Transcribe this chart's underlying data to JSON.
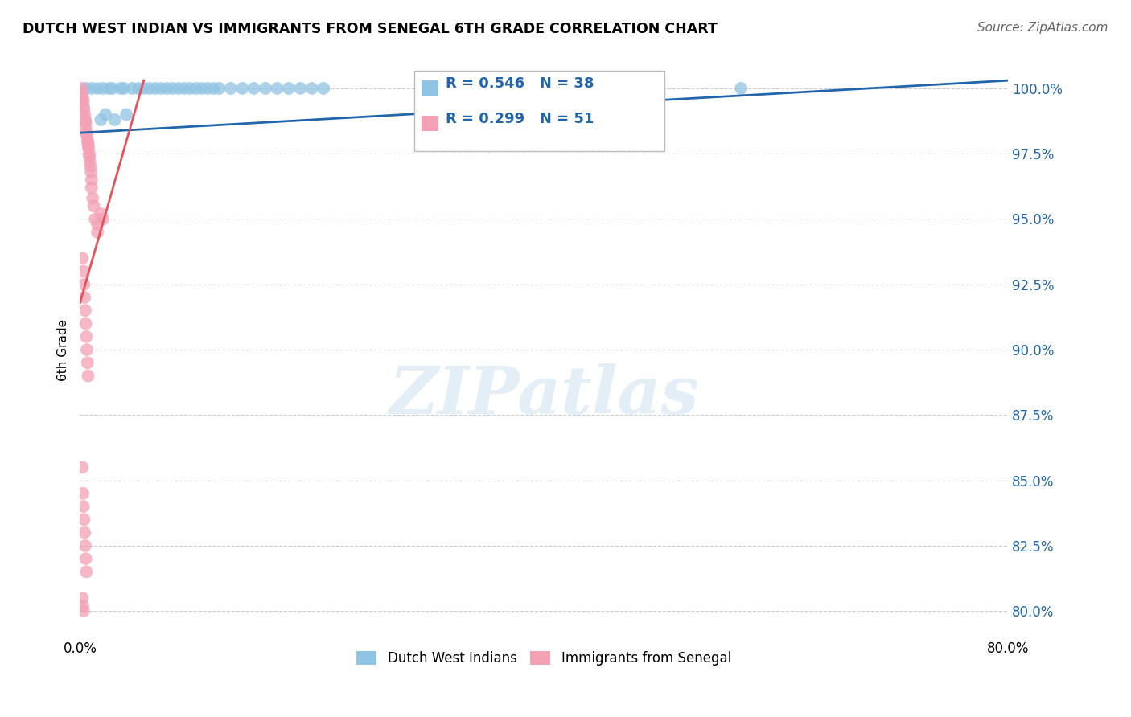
{
  "title": "DUTCH WEST INDIAN VS IMMIGRANTS FROM SENEGAL 6TH GRADE CORRELATION CHART",
  "source": "Source: ZipAtlas.com",
  "ylabel": "6th Grade",
  "xlim": [
    0.0,
    80.0
  ],
  "ylim": [
    79.0,
    101.0
  ],
  "yticks": [
    80.0,
    82.5,
    85.0,
    87.5,
    90.0,
    92.5,
    95.0,
    97.5,
    100.0
  ],
  "ytick_labels_right": [
    "80.0%",
    "82.5%",
    "85.0%",
    "87.5%",
    "90.0%",
    "92.5%",
    "95.0%",
    "97.5%",
    "100.0%"
  ],
  "xtick_positions": [
    0,
    20,
    40,
    60,
    80
  ],
  "xtick_labels": [
    "0.0%",
    "",
    "",
    "",
    "80.0%"
  ],
  "blue_R": 0.546,
  "blue_N": 38,
  "pink_R": 0.299,
  "pink_N": 51,
  "blue_color": "#90c4e4",
  "pink_color": "#f4a0b5",
  "blue_line_color": "#2166ac",
  "pink_line_color": "#e8505a",
  "legend_label_blue": "Dutch West Indians",
  "legend_label_pink": "Immigrants from Senegal",
  "watermark_text": "ZIPatlas",
  "blue_line_x": [
    0.0,
    80.0
  ],
  "blue_line_y": [
    98.3,
    100.3
  ],
  "pink_line_x": [
    0.0,
    5.5
  ],
  "pink_line_y": [
    91.8,
    100.3
  ],
  "blue_x": [
    0.5,
    1.0,
    1.5,
    2.0,
    2.5,
    2.8,
    3.5,
    3.8,
    4.5,
    5.0,
    5.5,
    6.0,
    6.5,
    7.0,
    7.5,
    8.0,
    8.5,
    9.0,
    9.5,
    10.0,
    10.5,
    11.0,
    11.5,
    12.0,
    13.0,
    14.0,
    15.0,
    16.0,
    17.0,
    18.0,
    19.0,
    20.0,
    21.0,
    1.8,
    2.2,
    3.0,
    4.0,
    57.0
  ],
  "blue_y": [
    100.0,
    100.0,
    100.0,
    100.0,
    100.0,
    100.0,
    100.0,
    100.0,
    100.0,
    100.0,
    100.0,
    100.0,
    100.0,
    100.0,
    100.0,
    100.0,
    100.0,
    100.0,
    100.0,
    100.0,
    100.0,
    100.0,
    100.0,
    100.0,
    100.0,
    100.0,
    100.0,
    100.0,
    100.0,
    100.0,
    100.0,
    100.0,
    100.0,
    98.8,
    99.0,
    98.8,
    99.0,
    100.0
  ],
  "pink_x": [
    0.15,
    0.2,
    0.25,
    0.3,
    0.3,
    0.35,
    0.4,
    0.45,
    0.5,
    0.5,
    0.55,
    0.6,
    0.65,
    0.7,
    0.7,
    0.75,
    0.8,
    0.8,
    0.85,
    0.9,
    0.95,
    1.0,
    1.0,
    1.1,
    1.2,
    1.3,
    1.5,
    1.5,
    1.8,
    2.0,
    0.2,
    0.3,
    0.35,
    0.4,
    0.45,
    0.5,
    0.55,
    0.6,
    0.65,
    0.7,
    0.2,
    0.25,
    0.3,
    0.35,
    0.4,
    0.45,
    0.5,
    0.55,
    0.2,
    0.25,
    0.3
  ],
  "pink_y": [
    100.0,
    99.8,
    99.6,
    99.5,
    99.3,
    99.2,
    99.0,
    98.8,
    98.7,
    98.5,
    98.3,
    98.2,
    98.0,
    97.9,
    97.8,
    97.7,
    97.5,
    97.4,
    97.2,
    97.0,
    96.8,
    96.5,
    96.2,
    95.8,
    95.5,
    95.0,
    94.5,
    94.8,
    95.2,
    95.0,
    93.5,
    93.0,
    92.5,
    92.0,
    91.5,
    91.0,
    90.5,
    90.0,
    89.5,
    89.0,
    85.5,
    84.5,
    84.0,
    83.5,
    83.0,
    82.5,
    82.0,
    81.5,
    80.5,
    80.2,
    80.0
  ]
}
